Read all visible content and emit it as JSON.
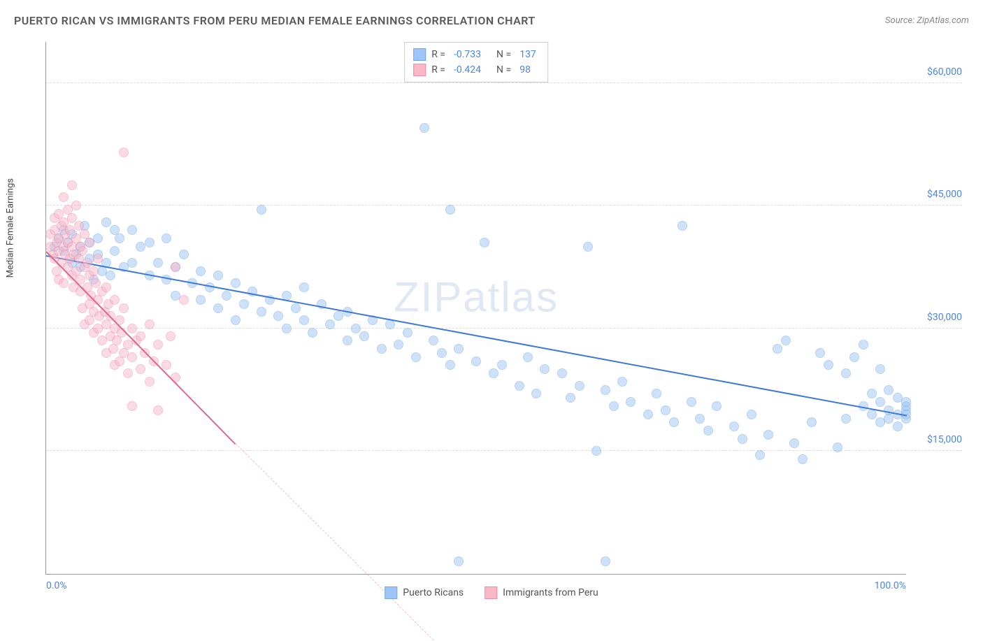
{
  "title": "PUERTO RICAN VS IMMIGRANTS FROM PERU MEDIAN FEMALE EARNINGS CORRELATION CHART",
  "source": "Source: ZipAtlas.com",
  "watermark": "ZIPatlas",
  "y_axis_label": "Median Female Earnings",
  "chart": {
    "type": "scatter",
    "background_color": "#ffffff",
    "grid_color": "#dddddd",
    "axis_color": "#999999",
    "tick_label_color": "#4a86e8",
    "x_min": 0,
    "x_max": 100,
    "y_min": 0,
    "y_max": 65000,
    "y_ticks": [
      15000,
      30000,
      45000,
      60000
    ],
    "y_tick_labels": [
      "$15,000",
      "$30,000",
      "$45,000",
      "$60,000"
    ],
    "x_ticks": [
      0,
      100
    ],
    "x_tick_labels": [
      "0.0%",
      "100.0%"
    ],
    "point_radius": 7,
    "point_opacity": 0.5
  },
  "series": [
    {
      "name": "Puerto Ricans",
      "color": "#9fc5f8",
      "stroke": "#6fa8dc",
      "line_color": "#3c78d8",
      "R": "-0.733",
      "N": "137",
      "trend": {
        "x1": 0,
        "y1": 39000,
        "x2": 100,
        "y2": 19500
      },
      "points": [
        [
          1,
          40000
        ],
        [
          1.5,
          41000
        ],
        [
          2,
          39500
        ],
        [
          2,
          42000
        ],
        [
          2.5,
          40500
        ],
        [
          3,
          38000
        ],
        [
          3,
          41500
        ],
        [
          3.5,
          39000
        ],
        [
          4,
          40000
        ],
        [
          4,
          37500
        ],
        [
          4.5,
          42500
        ],
        [
          5,
          38500
        ],
        [
          5,
          40500
        ],
        [
          5.5,
          36000
        ],
        [
          6,
          39000
        ],
        [
          6,
          41000
        ],
        [
          6.5,
          37000
        ],
        [
          7,
          38000
        ],
        [
          7,
          43000
        ],
        [
          7.5,
          36500
        ],
        [
          8,
          39500
        ],
        [
          8,
          42000
        ],
        [
          8.5,
          41000
        ],
        [
          9,
          37500
        ],
        [
          10,
          42000
        ],
        [
          10,
          38000
        ],
        [
          11,
          40000
        ],
        [
          12,
          36500
        ],
        [
          12,
          40500
        ],
        [
          13,
          38000
        ],
        [
          14,
          36000
        ],
        [
          14,
          41000
        ],
        [
          15,
          37500
        ],
        [
          15,
          34000
        ],
        [
          16,
          39000
        ],
        [
          17,
          35500
        ],
        [
          18,
          37000
        ],
        [
          18,
          33500
        ],
        [
          19,
          35000
        ],
        [
          20,
          36500
        ],
        [
          20,
          32500
        ],
        [
          21,
          34000
        ],
        [
          22,
          35500
        ],
        [
          22,
          31000
        ],
        [
          23,
          33000
        ],
        [
          24,
          34500
        ],
        [
          25,
          32000
        ],
        [
          25,
          44500
        ],
        [
          26,
          33500
        ],
        [
          27,
          31500
        ],
        [
          28,
          34000
        ],
        [
          28,
          30000
        ],
        [
          29,
          32500
        ],
        [
          30,
          31000
        ],
        [
          30,
          35000
        ],
        [
          31,
          29500
        ],
        [
          32,
          33000
        ],
        [
          33,
          30500
        ],
        [
          34,
          31500
        ],
        [
          35,
          28500
        ],
        [
          35,
          32000
        ],
        [
          36,
          30000
        ],
        [
          37,
          29000
        ],
        [
          38,
          31000
        ],
        [
          39,
          27500
        ],
        [
          40,
          30500
        ],
        [
          41,
          28000
        ],
        [
          42,
          29500
        ],
        [
          43,
          26500
        ],
        [
          44,
          54500
        ],
        [
          45,
          28500
        ],
        [
          46,
          27000
        ],
        [
          47,
          25500
        ],
        [
          47,
          44500
        ],
        [
          48,
          27500
        ],
        [
          48,
          1500
        ],
        [
          50,
          26000
        ],
        [
          51,
          40500
        ],
        [
          52,
          24500
        ],
        [
          53,
          25500
        ],
        [
          55,
          23000
        ],
        [
          56,
          26500
        ],
        [
          57,
          22000
        ],
        [
          58,
          25000
        ],
        [
          60,
          24500
        ],
        [
          61,
          21500
        ],
        [
          62,
          23000
        ],
        [
          63,
          40000
        ],
        [
          64,
          15000
        ],
        [
          65,
          22500
        ],
        [
          65,
          1500
        ],
        [
          66,
          20500
        ],
        [
          67,
          23500
        ],
        [
          68,
          21000
        ],
        [
          70,
          19500
        ],
        [
          71,
          22000
        ],
        [
          72,
          20000
        ],
        [
          73,
          18500
        ],
        [
          74,
          42500
        ],
        [
          75,
          21000
        ],
        [
          76,
          19000
        ],
        [
          77,
          17500
        ],
        [
          78,
          20500
        ],
        [
          80,
          18000
        ],
        [
          81,
          16500
        ],
        [
          82,
          19500
        ],
        [
          83,
          14500
        ],
        [
          84,
          17000
        ],
        [
          85,
          27500
        ],
        [
          86,
          28500
        ],
        [
          87,
          16000
        ],
        [
          88,
          14000
        ],
        [
          89,
          18500
        ],
        [
          90,
          27000
        ],
        [
          91,
          25500
        ],
        [
          92,
          15500
        ],
        [
          93,
          19000
        ],
        [
          93,
          24500
        ],
        [
          94,
          26500
        ],
        [
          95,
          20500
        ],
        [
          95,
          28000
        ],
        [
          96,
          19500
        ],
        [
          96,
          22000
        ],
        [
          97,
          18500
        ],
        [
          97,
          21000
        ],
        [
          97,
          25000
        ],
        [
          98,
          19000
        ],
        [
          98,
          20000
        ],
        [
          98,
          22500
        ],
        [
          99,
          19500
        ],
        [
          99,
          21500
        ],
        [
          99,
          18000
        ],
        [
          100,
          19000
        ],
        [
          100,
          20000
        ],
        [
          100,
          20500
        ],
        [
          100,
          19500
        ],
        [
          100,
          21000
        ]
      ]
    },
    {
      "name": "Immigrants from Peru",
      "color": "#f8b8c8",
      "stroke": "#f08ba8",
      "line_color": "#e06688",
      "R": "-0.424",
      "N": "98",
      "trend": {
        "x1": 0,
        "y1": 39500,
        "x2": 22,
        "y2": 16000
      },
      "trend_extend": {
        "x1": 22,
        "y1": 16000,
        "x2": 45,
        "y2": -8000
      },
      "points": [
        [
          0.5,
          40000
        ],
        [
          0.5,
          41500
        ],
        [
          0.8,
          39000
        ],
        [
          1,
          42000
        ],
        [
          1,
          38500
        ],
        [
          1,
          43500
        ],
        [
          1.2,
          40500
        ],
        [
          1.2,
          37000
        ],
        [
          1.5,
          41000
        ],
        [
          1.5,
          39500
        ],
        [
          1.5,
          44000
        ],
        [
          1.5,
          36000
        ],
        [
          1.8,
          42500
        ],
        [
          1.8,
          38000
        ],
        [
          2,
          40000
        ],
        [
          2,
          43000
        ],
        [
          2,
          35500
        ],
        [
          2,
          46000
        ],
        [
          2.2,
          39000
        ],
        [
          2.2,
          41500
        ],
        [
          2.5,
          37500
        ],
        [
          2.5,
          44500
        ],
        [
          2.5,
          40500
        ],
        [
          2.8,
          38500
        ],
        [
          2.8,
          42000
        ],
        [
          3,
          36500
        ],
        [
          3,
          40000
        ],
        [
          3,
          43500
        ],
        [
          3,
          47500
        ],
        [
          3.2,
          39000
        ],
        [
          3.2,
          35000
        ],
        [
          3.5,
          41000
        ],
        [
          3.5,
          37000
        ],
        [
          3.5,
          45000
        ],
        [
          3.8,
          38500
        ],
        [
          3.8,
          42500
        ],
        [
          4,
          34500
        ],
        [
          4,
          40000
        ],
        [
          4,
          36000
        ],
        [
          4.2,
          39500
        ],
        [
          4.2,
          32500
        ],
        [
          4.5,
          37500
        ],
        [
          4.5,
          41500
        ],
        [
          4.5,
          30500
        ],
        [
          4.8,
          35000
        ],
        [
          4.8,
          38000
        ],
        [
          5,
          33000
        ],
        [
          5,
          36500
        ],
        [
          5,
          31000
        ],
        [
          5,
          40500
        ],
        [
          5.2,
          34000
        ],
        [
          5.5,
          37000
        ],
        [
          5.5,
          29500
        ],
        [
          5.5,
          32000
        ],
        [
          5.8,
          35500
        ],
        [
          6,
          30000
        ],
        [
          6,
          33500
        ],
        [
          6,
          38500
        ],
        [
          6.2,
          31500
        ],
        [
          6.5,
          34500
        ],
        [
          6.5,
          28500
        ],
        [
          6.8,
          32000
        ],
        [
          7,
          30500
        ],
        [
          7,
          35000
        ],
        [
          7,
          27000
        ],
        [
          7.2,
          33000
        ],
        [
          7.5,
          29000
        ],
        [
          7.5,
          31500
        ],
        [
          7.8,
          27500
        ],
        [
          8,
          30000
        ],
        [
          8,
          33500
        ],
        [
          8,
          25500
        ],
        [
          8.2,
          28500
        ],
        [
          8.5,
          31000
        ],
        [
          8.5,
          26000
        ],
        [
          8.8,
          29500
        ],
        [
          9,
          27000
        ],
        [
          9,
          32500
        ],
        [
          9,
          51500
        ],
        [
          9.5,
          28000
        ],
        [
          9.5,
          24500
        ],
        [
          10,
          30000
        ],
        [
          10,
          26500
        ],
        [
          10,
          20500
        ],
        [
          10.5,
          28500
        ],
        [
          11,
          25000
        ],
        [
          11,
          29000
        ],
        [
          11.5,
          27000
        ],
        [
          12,
          23500
        ],
        [
          12,
          30500
        ],
        [
          12.5,
          26000
        ],
        [
          13,
          28000
        ],
        [
          13,
          20000
        ],
        [
          14,
          25500
        ],
        [
          14.5,
          29000
        ],
        [
          15,
          37500
        ],
        [
          15,
          24000
        ],
        [
          16,
          33500
        ]
      ]
    }
  ],
  "legend_labels": {
    "r_prefix": "R =",
    "n_prefix": "N ="
  }
}
